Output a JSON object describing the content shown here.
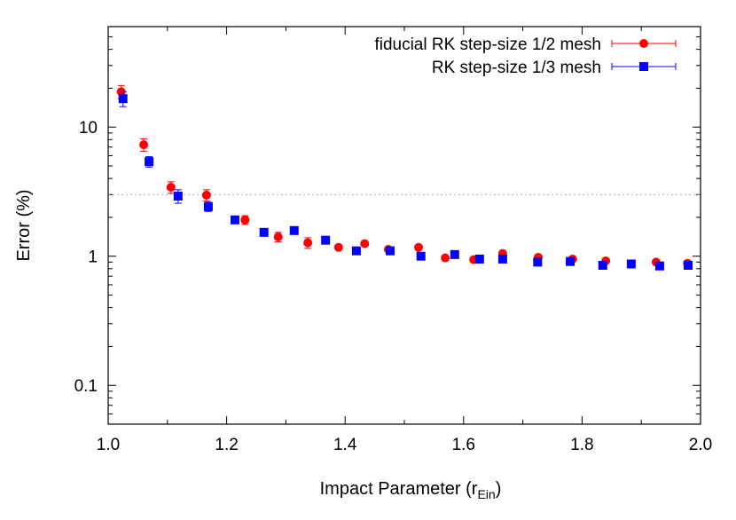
{
  "chart_data": {
    "type": "scatter",
    "title": "",
    "xlabel": "Impact Parameter (r",
    "xlabel_sub": "Ein",
    "xlabel_close": ")",
    "ylabel": "Error (%)",
    "xlim": [
      1.0,
      2.0
    ],
    "ylim": [
      0.05,
      60
    ],
    "yscale": "log",
    "xticks": [
      "1.0",
      "1.2",
      "1.4",
      "1.6",
      "1.8",
      "2.0"
    ],
    "yticks": [
      "0.1",
      "1",
      "10"
    ],
    "grid": false,
    "legend_position": "top-right",
    "reference_line": {
      "y": 3,
      "style": "dotted",
      "color": "#aaaaaa"
    },
    "series": [
      {
        "name": "fiducial RK step-size 1/2 mesh",
        "marker": "circle",
        "color": "#ff0000",
        "x": [
          1.022,
          1.06,
          1.106,
          1.166,
          1.231,
          1.287,
          1.337,
          1.389,
          1.433,
          1.473,
          1.524,
          1.569,
          1.617,
          1.666,
          1.726,
          1.784,
          1.84,
          1.925,
          1.978
        ],
        "y": [
          18.8,
          7.3,
          3.42,
          2.97,
          1.91,
          1.41,
          1.27,
          1.17,
          1.25,
          1.13,
          1.17,
          0.97,
          0.94,
          1.05,
          0.98,
          0.95,
          0.92,
          0.9,
          0.88
        ],
        "err": [
          2.2,
          0.8,
          0.35,
          0.3,
          0.15,
          0.12,
          0.12,
          0.05,
          0.05,
          0.04,
          0.04,
          0.03,
          0.03,
          0.03,
          0.03,
          0.03,
          0.03,
          0.03,
          0.03
        ]
      },
      {
        "name": "RK step-size 1/3 mesh",
        "marker": "square",
        "color": "#0000ff",
        "x": [
          1.025,
          1.069,
          1.118,
          1.169,
          1.214,
          1.263,
          1.314,
          1.367,
          1.419,
          1.476,
          1.528,
          1.585,
          1.627,
          1.666,
          1.725,
          1.78,
          1.835,
          1.883,
          1.931,
          1.979
        ],
        "y": [
          16.6,
          5.4,
          2.92,
          2.42,
          1.91,
          1.53,
          1.58,
          1.33,
          1.1,
          1.1,
          1.0,
          1.03,
          0.95,
          0.95,
          0.9,
          0.91,
          0.85,
          0.87,
          0.84,
          0.85
        ],
        "err": [
          2.2,
          0.5,
          0.35,
          0.2,
          0.12,
          0.1,
          0.08,
          0.05,
          0.05,
          0.04,
          0.04,
          0.03,
          0.03,
          0.03,
          0.03,
          0.03,
          0.03,
          0.03,
          0.03,
          0.03
        ]
      }
    ]
  }
}
